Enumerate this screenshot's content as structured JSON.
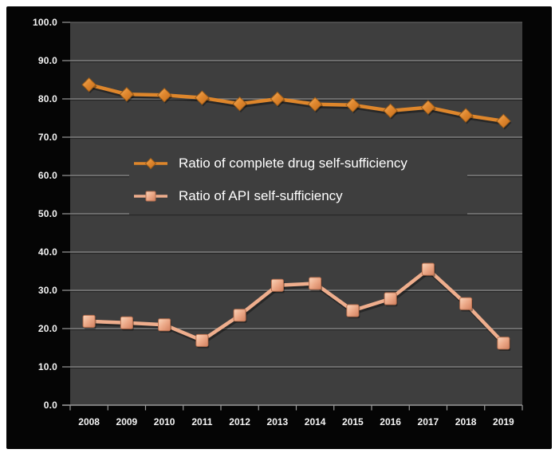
{
  "chart_data": {
    "type": "line",
    "title": "",
    "xlabel": "",
    "ylabel": "",
    "categories": [
      "2008",
      "2009",
      "2010",
      "2011",
      "2012",
      "2013",
      "2014",
      "2015",
      "2016",
      "2017",
      "2018",
      "2019"
    ],
    "series": [
      {
        "name": "Ratio of complete drug self-sufficiency",
        "marker": "diamond",
        "color": "#DE862B",
        "marker_stroke": "#9E5D18",
        "values": [
          83.7,
          81.2,
          81.0,
          80.3,
          78.7,
          80.0,
          78.6,
          78.4,
          76.9,
          77.8,
          75.7,
          74.2
        ]
      },
      {
        "name": "Ratio of API self-sufficiency",
        "marker": "square",
        "color": "#EFAE8D",
        "marker_stroke": "#B9704F",
        "values": [
          21.9,
          21.5,
          21.0,
          16.9,
          23.5,
          31.3,
          31.8,
          24.7,
          27.8,
          35.5,
          26.5,
          16.2
        ]
      }
    ],
    "ylim": [
      0,
      100
    ],
    "y_ticks": [
      100,
      90,
      80,
      70,
      60,
      50,
      40,
      30,
      20,
      10,
      0
    ],
    "y_tick_labels": [
      "100.0",
      "90.0",
      "80.0",
      "70.0",
      "60.0",
      "50.0",
      "40.0",
      "30.0",
      "20.0",
      "10.0",
      "0.0"
    ],
    "grid": "horizontal",
    "legend_position": "inside-center-left"
  },
  "colors": {
    "frame": "#FFFFFF",
    "chart_background": "#050505",
    "plot_background": "#3E3E3E",
    "gridline": "#898989",
    "axis_line": "#9A9A9A",
    "tick_label": "#F4F4F4",
    "legend_text": "#FFFFFF"
  }
}
